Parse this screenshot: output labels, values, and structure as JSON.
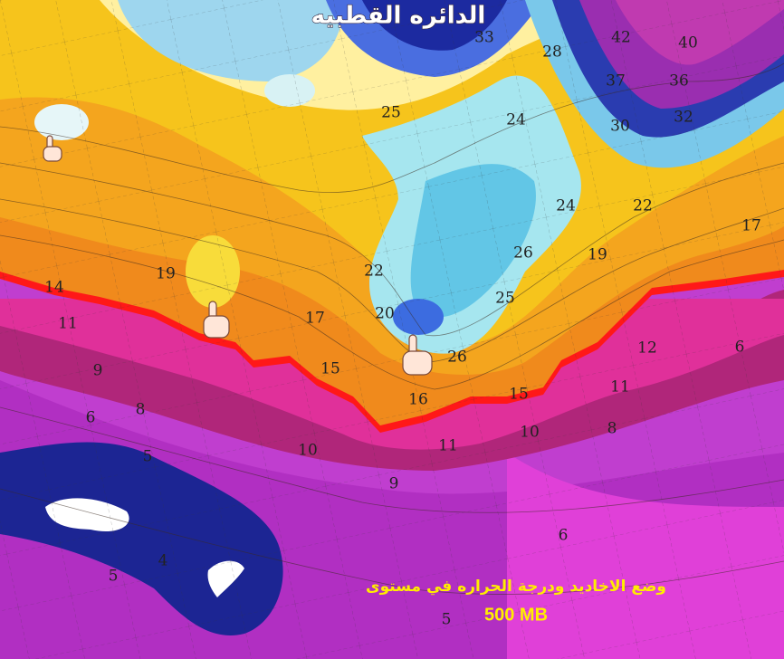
{
  "title": "الدائره القطبيه",
  "caption": {
    "line1": "وضع الاخاديد ودرجة الحراره في مستوى",
    "line2": "500 MB"
  },
  "contour_labels": [
    "33",
    "28",
    "42",
    "40",
    "37",
    "36",
    "30",
    "32",
    "24",
    "25",
    "24",
    "22",
    "17",
    "26",
    "19",
    "25",
    "22",
    "19",
    "17",
    "20",
    "26",
    "12",
    "15",
    "16",
    "15",
    "11",
    "14",
    "11",
    "9",
    "6",
    "8",
    "10",
    "11",
    "10",
    "8",
    "9",
    "5",
    "6",
    "5",
    "4",
    "5",
    "6"
  ]
}
